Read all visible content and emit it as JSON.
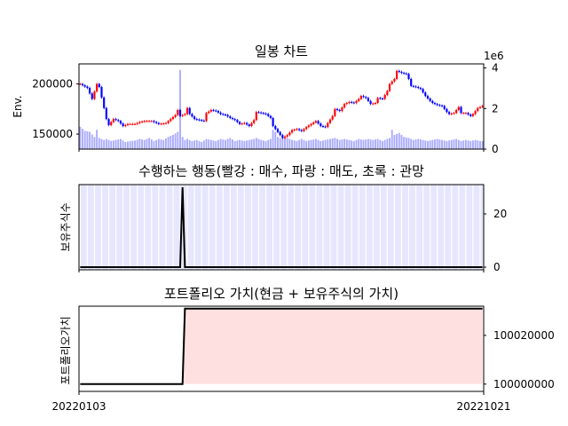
{
  "chart_data": [
    {
      "type": "candlestick",
      "title": "일봉 차트",
      "ylabel": "Env.",
      "ylim": [
        135000,
        220000
      ],
      "y_ticks": [
        150000,
        200000
      ],
      "secondary_ylim": [
        0,
        4.2
      ],
      "secondary_ticks": [
        0,
        2,
        4
      ],
      "secondary_offset_label": "1e6",
      "close_series": [
        [
          0,
          200000
        ],
        [
          3,
          196000
        ],
        [
          5,
          185000
        ],
        [
          7,
          200000
        ],
        [
          8,
          197000
        ],
        [
          10,
          176000
        ],
        [
          11,
          165000
        ],
        [
          12,
          159000
        ],
        [
          14,
          165000
        ],
        [
          16,
          163000
        ],
        [
          18,
          158000
        ],
        [
          20,
          160000
        ],
        [
          23,
          160000
        ],
        [
          25,
          162000
        ],
        [
          27,
          163000
        ],
        [
          30,
          163000
        ],
        [
          33,
          160000
        ],
        [
          36,
          161000
        ],
        [
          38,
          165000
        ],
        [
          40,
          169000
        ],
        [
          41,
          174000
        ],
        [
          42,
          168000
        ],
        [
          44,
          170000
        ],
        [
          45,
          176000
        ],
        [
          46,
          170000
        ],
        [
          48,
          165000
        ],
        [
          50,
          164000
        ],
        [
          52,
          163000
        ],
        [
          53,
          171000
        ],
        [
          55,
          174000
        ],
        [
          57,
          173000
        ],
        [
          59,
          170000
        ],
        [
          61,
          169000
        ],
        [
          63,
          166000
        ],
        [
          65,
          164000
        ],
        [
          67,
          160000
        ],
        [
          69,
          161000
        ],
        [
          71,
          158000
        ],
        [
          73,
          164000
        ],
        [
          74,
          172000
        ],
        [
          76,
          171000
        ],
        [
          78,
          170000
        ],
        [
          80,
          166000
        ],
        [
          81,
          158000
        ],
        [
          83,
          152000
        ],
        [
          85,
          146000
        ],
        [
          87,
          149000
        ],
        [
          89,
          154000
        ],
        [
          91,
          155000
        ],
        [
          93,
          153000
        ],
        [
          95,
          157000
        ],
        [
          97,
          160000
        ],
        [
          99,
          163000
        ],
        [
          101,
          158000
        ],
        [
          103,
          157000
        ],
        [
          104,
          161000
        ],
        [
          106,
          168000
        ],
        [
          107,
          175000
        ],
        [
          109,
          173000
        ],
        [
          111,
          180000
        ],
        [
          113,
          182000
        ],
        [
          115,
          181000
        ],
        [
          117,
          185000
        ],
        [
          118,
          188000
        ],
        [
          120,
          186000
        ],
        [
          122,
          180000
        ],
        [
          124,
          181000
        ],
        [
          125,
          186000
        ],
        [
          127,
          185000
        ],
        [
          129,
          193000
        ],
        [
          130,
          200000
        ],
        [
          132,
          205000
        ],
        [
          133,
          213000
        ],
        [
          135,
          211000
        ],
        [
          137,
          210000
        ],
        [
          138,
          205000
        ],
        [
          139,
          198000
        ],
        [
          141,
          197000
        ],
        [
          143,
          195000
        ],
        [
          145,
          188000
        ],
        [
          147,
          183000
        ],
        [
          148,
          181000
        ],
        [
          150,
          179000
        ],
        [
          152,
          178000
        ],
        [
          154,
          172000
        ],
        [
          155,
          170000
        ],
        [
          157,
          171000
        ],
        [
          159,
          177000
        ],
        [
          160,
          171000
        ],
        [
          162,
          171000
        ],
        [
          164,
          168000
        ],
        [
          165,
          170000
        ],
        [
          167,
          176000
        ],
        [
          169,
          178000
        ]
      ],
      "volume_series": [
        [
          0,
          1.1
        ],
        [
          2,
          0.9
        ],
        [
          4,
          0.85
        ],
        [
          6,
          0.6
        ],
        [
          7,
          0.95
        ],
        [
          8,
          0.55
        ],
        [
          10,
          0.45
        ],
        [
          11,
          0.5
        ],
        [
          13,
          0.4
        ],
        [
          15,
          0.45
        ],
        [
          17,
          0.5
        ],
        [
          19,
          0.35
        ],
        [
          21,
          0.4
        ],
        [
          23,
          0.42
        ],
        [
          25,
          0.5
        ],
        [
          27,
          0.45
        ],
        [
          29,
          0.55
        ],
        [
          31,
          0.4
        ],
        [
          33,
          0.5
        ],
        [
          35,
          0.45
        ],
        [
          37,
          0.6
        ],
        [
          39,
          0.7
        ],
        [
          41,
          0.85
        ],
        [
          42,
          3.9
        ],
        [
          43,
          0.6
        ],
        [
          44,
          0.45
        ],
        [
          45,
          0.5
        ],
        [
          47,
          0.4
        ],
        [
          49,
          0.45
        ],
        [
          51,
          0.35
        ],
        [
          53,
          0.5
        ],
        [
          55,
          0.45
        ],
        [
          57,
          0.4
        ],
        [
          59,
          0.5
        ],
        [
          61,
          0.45
        ],
        [
          63,
          0.55
        ],
        [
          65,
          0.4
        ],
        [
          67,
          0.45
        ],
        [
          69,
          0.4
        ],
        [
          71,
          0.45
        ],
        [
          73,
          0.5
        ],
        [
          74,
          0.55
        ],
        [
          76,
          0.45
        ],
        [
          78,
          0.4
        ],
        [
          80,
          0.5
        ],
        [
          81,
          0.95
        ],
        [
          82,
          0.85
        ],
        [
          83,
          0.6
        ],
        [
          85,
          0.5
        ],
        [
          87,
          0.55
        ],
        [
          89,
          0.45
        ],
        [
          91,
          0.4
        ],
        [
          93,
          0.5
        ],
        [
          95,
          0.4
        ],
        [
          97,
          0.45
        ],
        [
          99,
          0.5
        ],
        [
          101,
          0.4
        ],
        [
          103,
          0.45
        ],
        [
          105,
          0.5
        ],
        [
          107,
          0.55
        ],
        [
          109,
          0.45
        ],
        [
          111,
          0.5
        ],
        [
          113,
          0.45
        ],
        [
          115,
          0.4
        ],
        [
          117,
          0.5
        ],
        [
          119,
          0.45
        ],
        [
          121,
          0.5
        ],
        [
          123,
          0.45
        ],
        [
          125,
          0.5
        ],
        [
          127,
          0.4
        ],
        [
          129,
          0.5
        ],
        [
          130,
          0.55
        ],
        [
          131,
          0.95
        ],
        [
          132,
          0.7
        ],
        [
          134,
          0.8
        ],
        [
          136,
          0.6
        ],
        [
          138,
          0.55
        ],
        [
          140,
          0.45
        ],
        [
          142,
          0.5
        ],
        [
          144,
          0.45
        ],
        [
          146,
          0.4
        ],
        [
          148,
          0.45
        ],
        [
          150,
          0.5
        ],
        [
          152,
          0.45
        ],
        [
          154,
          0.4
        ],
        [
          156,
          0.45
        ],
        [
          158,
          0.5
        ],
        [
          160,
          0.4
        ],
        [
          162,
          0.45
        ],
        [
          164,
          0.4
        ],
        [
          166,
          0.45
        ],
        [
          168,
          0.4
        ]
      ]
    },
    {
      "type": "line",
      "title": "수행하는 행동(빨강 : 매수, 파랑 : 매도, 초록 : 관망",
      "ylabel": "보유주식수",
      "ylim": [
        -1,
        31
      ],
      "y_ticks": [
        0,
        20
      ],
      "series": [
        {
          "values": [
            [
              0,
              0
            ],
            [
              42,
              0
            ],
            [
              43,
              30
            ],
            [
              44,
              0
            ],
            [
              169,
              0
            ]
          ]
        }
      ]
    },
    {
      "type": "area",
      "title": "포트폴리오 가치(현금 + 보유주식의 가치)",
      "ylabel": "포트폴리오가치",
      "ylim": [
        99997000,
        100032000
      ],
      "y_ticks": [
        100000000,
        100020000
      ],
      "x_tick_labels": [
        "20220103",
        "20221021"
      ],
      "series": [
        {
          "values": [
            [
              0,
              100000000
            ],
            [
              43,
              100000000
            ],
            [
              44,
              100031000
            ],
            [
              169,
              100031000
            ]
          ]
        }
      ]
    }
  ]
}
